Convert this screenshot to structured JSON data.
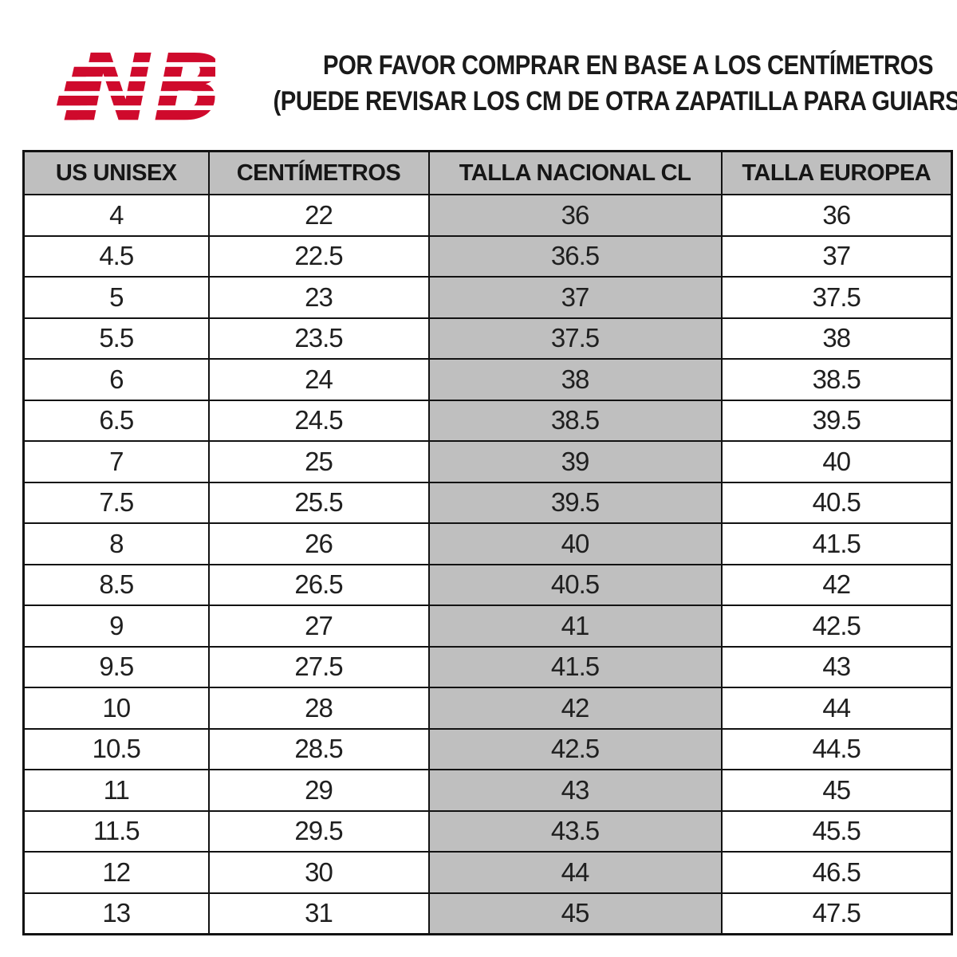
{
  "logo": {
    "label": "NB",
    "color": "#cf0a2c"
  },
  "header": {
    "line1": "POR FAVOR COMPRAR EN BASE A LOS CENTÍMETROS",
    "line2": "(PUEDE REVISAR LOS CM DE OTRA ZAPATILLA PARA GUIARSE)"
  },
  "colors": {
    "page_bg": "#ffffff",
    "table_header_bg": "#bfbfbf",
    "highlight_column_bg": "#bfbfbf",
    "border": "#121212",
    "logo_red": "#cf0a2c",
    "text": "#1c1c1c"
  },
  "chart_data": {
    "type": "table",
    "title": "POR FAVOR COMPRAR EN BASE A LOS CENTÍMETROS",
    "subtitle": "(PUEDE REVISAR LOS CM DE OTRA ZAPATILLA PARA GUIARSE)",
    "columns": [
      "US UNISEX",
      "CENTÍMETROS",
      "TALLA NACIONAL CL",
      "TALLA EUROPEA"
    ],
    "highlight_column": "TALLA NACIONAL CL",
    "highlight_column_index": 2,
    "rows": [
      [
        "4",
        "22",
        "36",
        "36"
      ],
      [
        "4.5",
        "22.5",
        "36.5",
        "37"
      ],
      [
        "5",
        "23",
        "37",
        "37.5"
      ],
      [
        "5.5",
        "23.5",
        "37.5",
        "38"
      ],
      [
        "6",
        "24",
        "38",
        "38.5"
      ],
      [
        "6.5",
        "24.5",
        "38.5",
        "39.5"
      ],
      [
        "7",
        "25",
        "39",
        "40"
      ],
      [
        "7.5",
        "25.5",
        "39.5",
        "40.5"
      ],
      [
        "8",
        "26",
        "40",
        "41.5"
      ],
      [
        "8.5",
        "26.5",
        "40.5",
        "42"
      ],
      [
        "9",
        "27",
        "41",
        "42.5"
      ],
      [
        "9.5",
        "27.5",
        "41.5",
        "43"
      ],
      [
        "10",
        "28",
        "42",
        "44"
      ],
      [
        "10.5",
        "28.5",
        "42.5",
        "44.5"
      ],
      [
        "11",
        "29",
        "43",
        "45"
      ],
      [
        "11.5",
        "29.5",
        "43.5",
        "45.5"
      ],
      [
        "12",
        "30",
        "44",
        "46.5"
      ],
      [
        "13",
        "31",
        "45",
        "47.5"
      ]
    ]
  }
}
